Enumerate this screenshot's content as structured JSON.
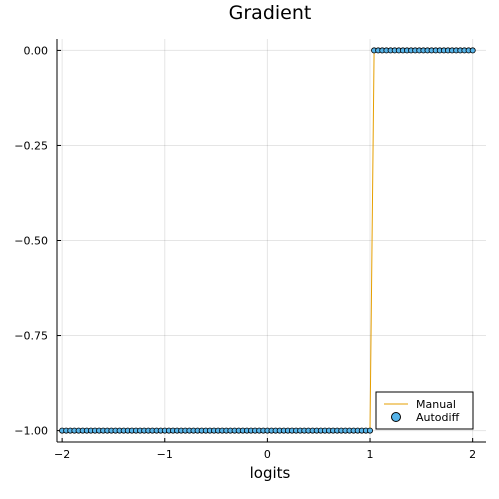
{
  "chart_data": {
    "type": "line",
    "title": "Gradient",
    "xlabel": "logits",
    "ylabel": "",
    "xlim": [
      -2.05,
      2.13
    ],
    "ylim": [
      -1.03,
      0.03
    ],
    "xticks": [
      -2,
      -1,
      0,
      1,
      2
    ],
    "xtick_labels": [
      "−2",
      "−1",
      "0",
      "1",
      "2"
    ],
    "yticks": [
      0.0,
      -0.25,
      -0.5,
      -0.75,
      -1.0
    ],
    "ytick_labels": [
      "0.00",
      "−0.25",
      "−0.50",
      "−0.75",
      "−1.00"
    ],
    "grid": true,
    "legend_position": "bottom-right",
    "series": [
      {
        "name": "Manual",
        "style": "line",
        "color": "#e69f00",
        "x": [
          -2.0,
          1.0,
          1.04,
          2.0
        ],
        "y": [
          -1.0,
          -1.0,
          0.0,
          0.0
        ]
      },
      {
        "name": "Autodiff",
        "style": "markers",
        "color": "#56b4e9",
        "x": [
          -2.0,
          -1.96,
          -1.92,
          -1.88,
          -1.84,
          -1.8,
          -1.76,
          -1.72,
          -1.68,
          -1.64,
          -1.6,
          -1.56,
          -1.52,
          -1.48,
          -1.44,
          -1.4,
          -1.36,
          -1.32,
          -1.28,
          -1.24,
          -1.2,
          -1.16,
          -1.12,
          -1.08,
          -1.04,
          -1.0,
          -0.96,
          -0.92,
          -0.88,
          -0.84,
          -0.8,
          -0.76,
          -0.72,
          -0.68,
          -0.64,
          -0.6,
          -0.56,
          -0.52,
          -0.48,
          -0.44,
          -0.4,
          -0.36,
          -0.32,
          -0.28,
          -0.24,
          -0.2,
          -0.16,
          -0.12,
          -0.08,
          -0.04,
          0.0,
          0.04,
          0.08,
          0.12,
          0.16,
          0.2,
          0.24,
          0.28,
          0.32,
          0.36,
          0.4,
          0.44,
          0.48,
          0.52,
          0.56,
          0.6,
          0.64,
          0.68,
          0.72,
          0.76,
          0.8,
          0.84,
          0.88,
          0.92,
          0.96,
          1.0,
          1.04,
          1.08,
          1.12,
          1.16,
          1.2,
          1.24,
          1.28,
          1.32,
          1.36,
          1.4,
          1.44,
          1.48,
          1.52,
          1.56,
          1.6,
          1.64,
          1.68,
          1.72,
          1.76,
          1.8,
          1.84,
          1.88,
          1.92,
          1.96,
          2.0
        ],
        "y": [
          -1,
          -1,
          -1,
          -1,
          -1,
          -1,
          -1,
          -1,
          -1,
          -1,
          -1,
          -1,
          -1,
          -1,
          -1,
          -1,
          -1,
          -1,
          -1,
          -1,
          -1,
          -1,
          -1,
          -1,
          -1,
          -1,
          -1,
          -1,
          -1,
          -1,
          -1,
          -1,
          -1,
          -1,
          -1,
          -1,
          -1,
          -1,
          -1,
          -1,
          -1,
          -1,
          -1,
          -1,
          -1,
          -1,
          -1,
          -1,
          -1,
          -1,
          -1,
          -1,
          -1,
          -1,
          -1,
          -1,
          -1,
          -1,
          -1,
          -1,
          -1,
          -1,
          -1,
          -1,
          -1,
          -1,
          -1,
          -1,
          -1,
          -1,
          -1,
          -1,
          -1,
          -1,
          -1,
          -1,
          0,
          0,
          0,
          0,
          0,
          0,
          0,
          0,
          0,
          0,
          0,
          0,
          0,
          0,
          0,
          0,
          0,
          0,
          0,
          0,
          0,
          0,
          0,
          0,
          0
        ]
      }
    ]
  }
}
